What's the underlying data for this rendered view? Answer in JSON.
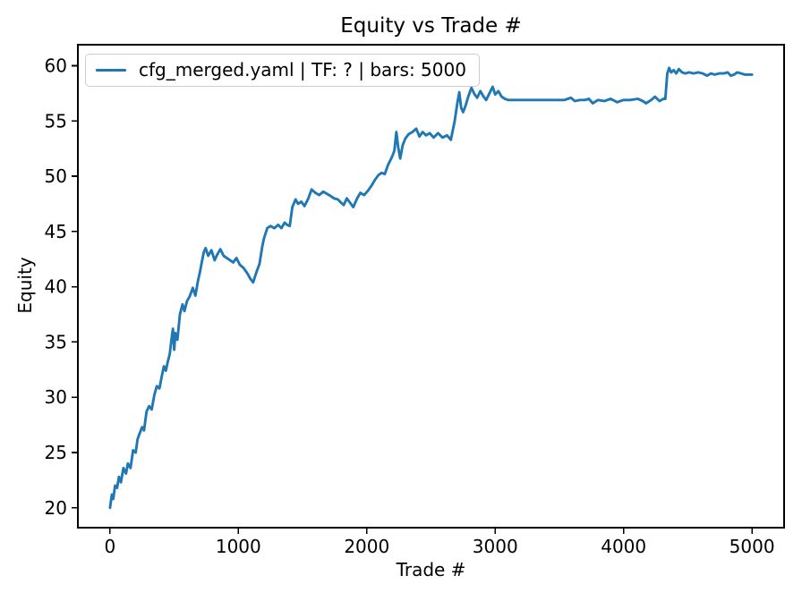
{
  "figure": {
    "background": "#ffffff"
  },
  "chart_data": {
    "type": "line",
    "title": "Equity vs Trade #",
    "xlabel": "Trade #",
    "ylabel": "Equity",
    "grid": false,
    "legend": {
      "position": "upper left",
      "entries": [
        {
          "label": "cfg_merged.yaml | TF: ? | bars: 5000",
          "color": "#1f77b4"
        }
      ]
    },
    "xlim": [
      -250,
      5250
    ],
    "ylim": [
      18.2,
      61.9
    ],
    "xticks": [
      0,
      1000,
      2000,
      3000,
      4000,
      5000
    ],
    "yticks": [
      20,
      25,
      30,
      35,
      40,
      45,
      50,
      55,
      60
    ],
    "axis_color": "#000000",
    "series": [
      {
        "name": "cfg_merged.yaml | TF: ? | bars: 5000",
        "color": "#1f77b4",
        "x": [
          0,
          15,
          25,
          40,
          55,
          70,
          85,
          105,
          125,
          140,
          160,
          180,
          200,
          215,
          230,
          250,
          265,
          285,
          305,
          325,
          345,
          365,
          385,
          405,
          420,
          435,
          450,
          465,
          480,
          490,
          500,
          510,
          525,
          545,
          565,
          580,
          600,
          620,
          645,
          665,
          685,
          700,
          715,
          730,
          745,
          765,
          790,
          815,
          835,
          860,
          885,
          910,
          935,
          960,
          985,
          1010,
          1040,
          1070,
          1095,
          1115,
          1140,
          1165,
          1185,
          1200,
          1225,
          1250,
          1280,
          1310,
          1335,
          1360,
          1380,
          1400,
          1420,
          1445,
          1465,
          1490,
          1515,
          1545,
          1570,
          1600,
          1630,
          1660,
          1690,
          1720,
          1745,
          1775,
          1800,
          1820,
          1845,
          1870,
          1895,
          1925,
          1950,
          1980,
          2010,
          2040,
          2065,
          2090,
          2115,
          2140,
          2165,
          2195,
          2215,
          2230,
          2245,
          2260,
          2280,
          2300,
          2325,
          2355,
          2385,
          2410,
          2435,
          2460,
          2490,
          2520,
          2555,
          2590,
          2625,
          2655,
          2685,
          2705,
          2720,
          2735,
          2750,
          2770,
          2790,
          2815,
          2840,
          2860,
          2885,
          2910,
          2930,
          2955,
          2980,
          3000,
          3025,
          3050,
          3075,
          3100,
          3135,
          3180,
          3240,
          3300,
          3360,
          3420,
          3480,
          3540,
          3590,
          3620,
          3660,
          3700,
          3730,
          3760,
          3800,
          3850,
          3900,
          3950,
          4000,
          4050,
          4110,
          4150,
          4175,
          4215,
          4245,
          4280,
          4310,
          4325,
          4340,
          4355,
          4370,
          4390,
          4410,
          4430,
          4455,
          4480,
          4510,
          4545,
          4580,
          4615,
          4650,
          4680,
          4710,
          4745,
          4780,
          4810,
          4835,
          4860,
          4885,
          4915,
          4945,
          4975,
          5000
        ],
        "y": [
          20.0,
          21.2,
          20.8,
          22.0,
          21.8,
          22.8,
          22.3,
          23.6,
          23.1,
          24.0,
          23.6,
          25.2,
          25.0,
          26.2,
          26.7,
          27.3,
          27.0,
          28.7,
          29.2,
          28.9,
          30.2,
          31.0,
          30.8,
          32.0,
          32.8,
          32.4,
          33.2,
          33.9,
          35.3,
          36.2,
          34.3,
          35.8,
          35.2,
          37.5,
          38.4,
          37.8,
          38.7,
          39.1,
          39.9,
          39.2,
          40.5,
          41.3,
          42.2,
          43.1,
          43.5,
          42.8,
          43.3,
          42.4,
          42.9,
          43.4,
          42.8,
          42.6,
          42.4,
          42.2,
          42.6,
          42.0,
          41.7,
          41.2,
          40.7,
          40.4,
          41.3,
          42.1,
          43.6,
          44.4,
          45.3,
          45.5,
          45.3,
          45.6,
          45.3,
          45.8,
          45.6,
          45.5,
          47.2,
          47.9,
          47.5,
          47.7,
          47.3,
          48.0,
          48.8,
          48.5,
          48.3,
          48.6,
          48.4,
          48.2,
          48.0,
          47.9,
          47.6,
          47.4,
          48.0,
          47.6,
          47.2,
          48.0,
          48.5,
          48.3,
          48.7,
          49.2,
          49.7,
          50.1,
          50.3,
          50.2,
          51.0,
          51.7,
          52.3,
          54.0,
          52.6,
          51.6,
          52.8,
          53.4,
          53.8,
          54.0,
          54.3,
          53.6,
          54.0,
          53.7,
          53.9,
          53.5,
          53.9,
          53.5,
          53.7,
          53.3,
          55.0,
          56.6,
          57.6,
          56.2,
          55.8,
          56.4,
          57.2,
          58.0,
          57.4,
          57.1,
          57.7,
          57.2,
          56.9,
          57.5,
          58.1,
          57.4,
          57.7,
          57.2,
          57.0,
          56.9,
          56.9,
          56.9,
          56.9,
          56.9,
          56.9,
          56.9,
          56.9,
          56.9,
          57.1,
          56.8,
          56.9,
          56.9,
          57.0,
          56.6,
          56.9,
          56.8,
          57.0,
          56.7,
          56.9,
          56.9,
          57.0,
          56.8,
          56.6,
          56.9,
          57.2,
          56.8,
          57.0,
          57.0,
          59.3,
          59.8,
          59.4,
          59.6,
          59.3,
          59.7,
          59.4,
          59.3,
          59.4,
          59.3,
          59.4,
          59.3,
          59.1,
          59.3,
          59.2,
          59.3,
          59.3,
          59.4,
          59.1,
          59.2,
          59.4,
          59.3,
          59.2,
          59.2,
          59.2
        ]
      }
    ]
  }
}
